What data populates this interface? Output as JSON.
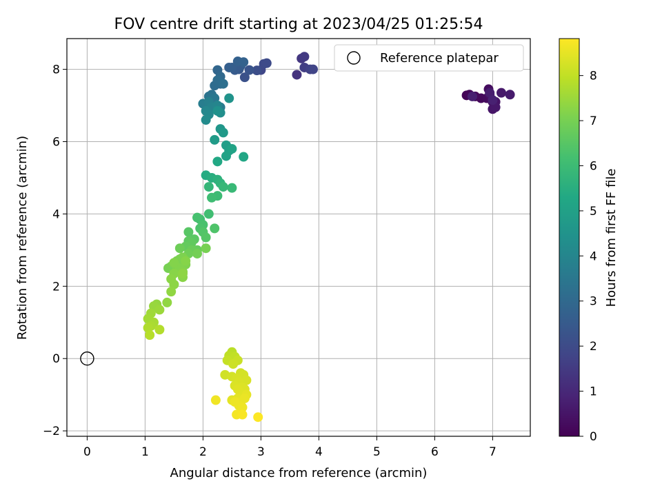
{
  "chart_data": {
    "type": "scatter",
    "title": "FOV centre drift starting at 2023/04/25 01:25:54",
    "xlabel": "Angular distance from reference (arcmin)",
    "ylabel": "Rotation from reference (arcmin)",
    "xlim": [
      -0.35,
      7.65
    ],
    "ylim": [
      -2.15,
      8.85
    ],
    "xticks": [
      0,
      1,
      2,
      3,
      4,
      5,
      6,
      7
    ],
    "yticks": [
      -2,
      0,
      2,
      4,
      6,
      8
    ],
    "grid": true,
    "legend": {
      "position": "top-right",
      "entries": [
        "Reference platepar"
      ]
    },
    "reference_point": {
      "x": 0,
      "y": 0,
      "marker": "open-circle"
    },
    "colorbar": {
      "label": "Hours from first FF file",
      "range": [
        0,
        8.82
      ],
      "ticks": [
        0,
        1,
        2,
        3,
        4,
        5,
        6,
        7,
        8
      ],
      "colormap": "viridis"
    },
    "series": [
      {
        "x": [
          6.55,
          6.6,
          6.7,
          6.8,
          6.9,
          6.93,
          6.95,
          7.0,
          7.05,
          7.0,
          7.05,
          7.15,
          7.3,
          6.95,
          6.65,
          7.0
        ],
        "y": [
          7.28,
          7.3,
          7.25,
          7.2,
          7.2,
          7.45,
          7.3,
          7.1,
          7.1,
          6.9,
          6.95,
          7.35,
          7.3,
          7.35,
          7.25,
          7.15
        ],
        "hours": [
          0.05,
          0.1,
          0.15,
          0.2,
          0.25,
          0.3,
          0.35,
          0.4,
          0.45,
          0.5,
          0.55,
          0.6,
          0.65,
          0.7,
          0.75,
          0.8
        ]
      },
      {
        "x": [
          3.62,
          3.7,
          3.75,
          3.75,
          3.85,
          3.9
        ],
        "y": [
          7.85,
          8.3,
          8.35,
          8.05,
          8.0,
          8.0
        ],
        "hours": [
          1.3,
          1.4,
          1.5,
          1.6,
          1.7,
          1.8
        ]
      },
      {
        "x": [
          3.0,
          3.05,
          3.1,
          2.93,
          2.72,
          2.8,
          2.62,
          2.55,
          2.65,
          2.5,
          2.45,
          2.6,
          2.7
        ],
        "y": [
          7.98,
          8.15,
          8.17,
          7.97,
          7.78,
          7.98,
          8.0,
          7.98,
          8.1,
          8.05,
          8.05,
          8.22,
          8.2
        ],
        "hours": [
          1.85,
          1.95,
          2.0,
          2.1,
          2.2,
          2.3,
          2.4,
          2.5,
          2.55,
          2.6,
          2.65,
          2.7,
          2.75
        ]
      },
      {
        "x": [
          2.25,
          2.3,
          2.3,
          2.2,
          2.25,
          2.35,
          2.15,
          2.1,
          2.2,
          2.3,
          2.0,
          2.1,
          2.15,
          2.25,
          2.05,
          2.1,
          2.05,
          2.3,
          2.25,
          2.45
        ],
        "y": [
          7.98,
          7.8,
          7.6,
          7.55,
          7.7,
          7.6,
          7.3,
          7.25,
          7.2,
          6.95,
          7.05,
          7.1,
          6.95,
          7.0,
          6.85,
          6.75,
          6.6,
          6.8,
          6.85,
          7.2
        ],
        "hours": [
          2.9,
          3.0,
          3.05,
          3.1,
          3.15,
          3.2,
          3.3,
          3.4,
          3.5,
          3.6,
          3.7,
          3.8,
          3.9,
          4.0,
          4.05,
          4.1,
          4.2,
          4.3,
          4.4,
          4.5
        ]
      },
      {
        "x": [
          2.3,
          2.35,
          2.2,
          2.4,
          2.45,
          2.4,
          2.5,
          2.7,
          2.25
        ],
        "y": [
          6.35,
          6.25,
          6.05,
          5.9,
          5.75,
          5.6,
          5.8,
          5.58,
          5.45
        ],
        "hours": [
          4.6,
          4.7,
          4.8,
          4.9,
          5.0,
          5.05,
          5.1,
          5.2,
          5.3
        ]
      },
      {
        "x": [
          2.05,
          2.15,
          2.25,
          2.3,
          2.1,
          2.35,
          2.5,
          2.25,
          2.15
        ],
        "y": [
          5.07,
          5.0,
          4.95,
          4.85,
          4.75,
          4.75,
          4.72,
          4.5,
          4.45
        ],
        "hours": [
          5.4,
          5.5,
          5.6,
          5.7,
          5.8,
          5.85,
          5.9,
          6.0,
          6.05
        ]
      },
      {
        "x": [
          2.1,
          1.95,
          1.9,
          2.0,
          1.95,
          2.2,
          2.0,
          2.05,
          1.75,
          1.85,
          1.75,
          1.8,
          1.7,
          1.9,
          1.8,
          1.6,
          1.75,
          1.9,
          2.05
        ],
        "y": [
          4.0,
          3.85,
          3.9,
          3.7,
          3.6,
          3.6,
          3.5,
          3.35,
          3.5,
          3.3,
          3.25,
          3.2,
          3.1,
          3.0,
          3.0,
          3.05,
          2.9,
          2.9,
          3.05
        ],
        "hours": [
          6.1,
          6.15,
          6.2,
          6.25,
          6.3,
          6.35,
          6.4,
          6.45,
          6.5,
          6.55,
          6.6,
          6.65,
          6.7,
          6.75,
          6.8,
          6.85,
          6.9,
          6.95,
          7.0
        ]
      },
      {
        "x": [
          1.4,
          1.45,
          1.5,
          1.55,
          1.6,
          1.65,
          1.7,
          1.55,
          1.6,
          1.5,
          1.65,
          1.7,
          1.5,
          1.65,
          1.45,
          1.5,
          1.65,
          1.45,
          1.38
        ],
        "y": [
          2.5,
          2.55,
          2.6,
          2.7,
          2.75,
          2.8,
          2.6,
          2.45,
          2.5,
          2.65,
          2.4,
          2.7,
          2.35,
          2.25,
          2.2,
          2.05,
          2.35,
          1.85,
          1.55
        ],
        "hours": [
          7.0,
          7.02,
          7.04,
          7.06,
          7.08,
          7.1,
          7.12,
          7.14,
          7.16,
          7.18,
          7.2,
          7.22,
          7.24,
          7.26,
          7.28,
          7.3,
          7.32,
          7.34,
          7.36
        ]
      },
      {
        "x": [
          1.2,
          1.15,
          1.25,
          1.1,
          1.05,
          1.15,
          1.1,
          1.05,
          1.25,
          1.08
        ],
        "y": [
          1.5,
          1.45,
          1.35,
          1.25,
          1.1,
          1.0,
          0.9,
          0.85,
          0.8,
          0.65
        ],
        "hours": [
          7.4,
          7.45,
          7.5,
          7.55,
          7.6,
          7.65,
          7.7,
          7.75,
          7.8,
          7.85
        ]
      },
      {
        "x": [
          2.5,
          2.45,
          2.55,
          2.42,
          2.6,
          2.52,
          2.38,
          2.65,
          2.5,
          2.7,
          2.58,
          2.75,
          2.62,
          2.55,
          2.68,
          2.72,
          2.6,
          2.65,
          2.7,
          2.5,
          2.6,
          2.75,
          2.65,
          2.58,
          2.72,
          2.62,
          2.55,
          2.68,
          2.22,
          2.58,
          2.68,
          2.95
        ],
        "y": [
          0.18,
          0.08,
          0.05,
          -0.05,
          -0.05,
          -0.15,
          -0.45,
          -0.4,
          -0.5,
          -0.45,
          -0.55,
          -0.6,
          -0.65,
          -0.75,
          -0.8,
          -0.85,
          -0.85,
          -0.95,
          -1.0,
          -1.15,
          -1.1,
          -1.0,
          -1.2,
          -1.2,
          -1.1,
          -1.3,
          -1.2,
          -1.35,
          -1.15,
          -1.55,
          -1.55,
          -1.62
        ],
        "hours": [
          7.9,
          7.95,
          8.0,
          8.05,
          8.1,
          8.15,
          8.2,
          8.22,
          8.24,
          8.26,
          8.28,
          8.3,
          8.32,
          8.34,
          8.36,
          8.38,
          8.4,
          8.42,
          8.44,
          8.46,
          8.48,
          8.5,
          8.52,
          8.54,
          8.56,
          8.58,
          8.6,
          8.62,
          8.64,
          8.7,
          8.75,
          8.8
        ]
      }
    ]
  }
}
